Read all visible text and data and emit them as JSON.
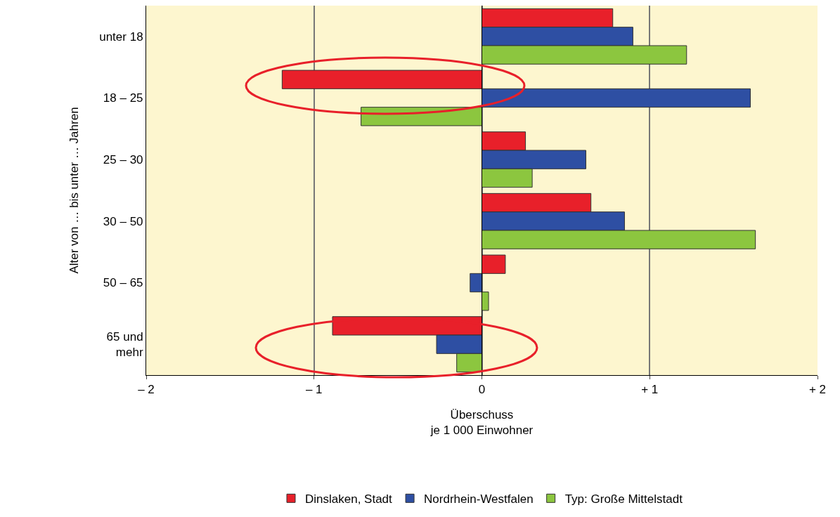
{
  "chart_data": {
    "type": "bar",
    "orientation": "horizontal",
    "categories": [
      "unter 18",
      "18 – 25",
      "25 – 30",
      "30 – 50",
      "50 – 65",
      "65 und\nmehr"
    ],
    "series": [
      {
        "name": "Dinslaken, Stadt",
        "color": "#e8202a",
        "values": [
          0.78,
          -1.19,
          0.26,
          0.65,
          0.14,
          -0.89
        ]
      },
      {
        "name": "Nordrhein-Westfalen",
        "color": "#2e4fa3",
        "values": [
          0.9,
          1.6,
          0.62,
          0.85,
          -0.07,
          -0.27
        ]
      },
      {
        "name": "Typ: Große Mittelstadt",
        "color": "#8cc63f",
        "values": [
          1.22,
          -0.72,
          0.3,
          1.63,
          0.04,
          -0.15
        ]
      }
    ],
    "xlim": [
      -2,
      2
    ],
    "xticks": [
      {
        "value": -2,
        "label": "– 2"
      },
      {
        "value": -1,
        "label": "– 1"
      },
      0,
      {
        "value": 1,
        "label": "+ 1"
      },
      {
        "value": 2,
        "label": "+ 2"
      }
    ],
    "xlabel": "Überschuss\nje 1 000 Einwohner",
    "ylabel": "Alter von … bis unter … Jahren",
    "grid": "x",
    "legend": "bottom"
  }
}
